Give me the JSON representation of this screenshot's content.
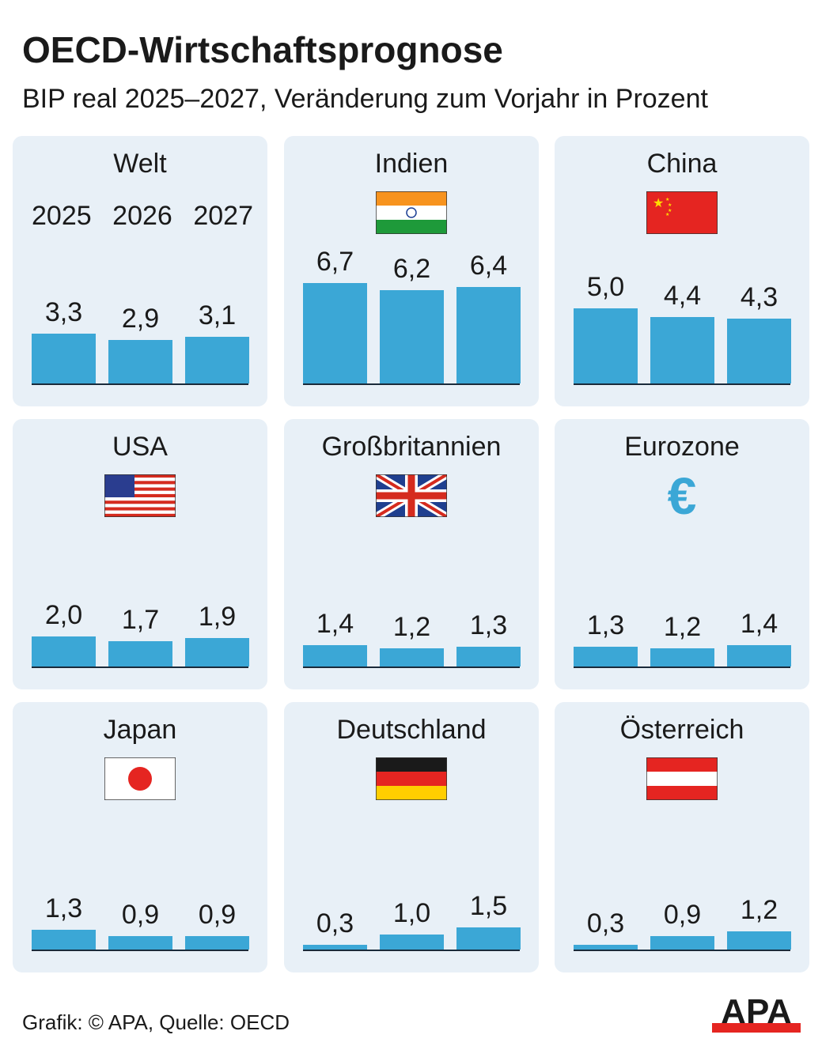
{
  "title": "OECD-Wirtschaftsprognose",
  "subtitle": "BIP real 2025–2027, Veränderung zum Vorjahr in Prozent",
  "source": "Grafik: © APA, Quelle: OECD",
  "logo_text": "APA",
  "colors": {
    "bar": "#3ba7d6",
    "panel": "#e8f0f7",
    "logo_red": "#e52521"
  },
  "chart_data": [
    {
      "type": "bar",
      "title": "Welt",
      "categories": [
        "2025",
        "2026",
        "2027"
      ],
      "values": [
        3.3,
        2.9,
        3.1
      ],
      "icon": "none",
      "show_years": true
    },
    {
      "type": "bar",
      "title": "Indien",
      "categories": [
        "2025",
        "2026",
        "2027"
      ],
      "values": [
        6.7,
        6.2,
        6.4
      ],
      "icon": "india-flag"
    },
    {
      "type": "bar",
      "title": "China",
      "categories": [
        "2025",
        "2026",
        "2027"
      ],
      "values": [
        5.0,
        4.4,
        4.3
      ],
      "icon": "china-flag"
    },
    {
      "type": "bar",
      "title": "USA",
      "categories": [
        "2025",
        "2026",
        "2027"
      ],
      "values": [
        2.0,
        1.7,
        1.9
      ],
      "icon": "usa-flag"
    },
    {
      "type": "bar",
      "title": "Großbritannien",
      "categories": [
        "2025",
        "2026",
        "2027"
      ],
      "values": [
        1.4,
        1.2,
        1.3
      ],
      "icon": "uk-flag"
    },
    {
      "type": "bar",
      "title": "Eurozone",
      "categories": [
        "2025",
        "2026",
        "2027"
      ],
      "values": [
        1.3,
        1.2,
        1.4
      ],
      "icon": "euro-icon"
    },
    {
      "type": "bar",
      "title": "Japan",
      "categories": [
        "2025",
        "2026",
        "2027"
      ],
      "values": [
        1.3,
        0.9,
        0.9
      ],
      "icon": "japan-flag"
    },
    {
      "type": "bar",
      "title": "Deutschland",
      "categories": [
        "2025",
        "2026",
        "2027"
      ],
      "values": [
        0.3,
        1.0,
        1.5
      ],
      "icon": "germany-flag"
    },
    {
      "type": "bar",
      "title": "Österreich",
      "categories": [
        "2025",
        "2026",
        "2027"
      ],
      "values": [
        0.3,
        0.9,
        1.2
      ],
      "icon": "austria-flag"
    }
  ]
}
